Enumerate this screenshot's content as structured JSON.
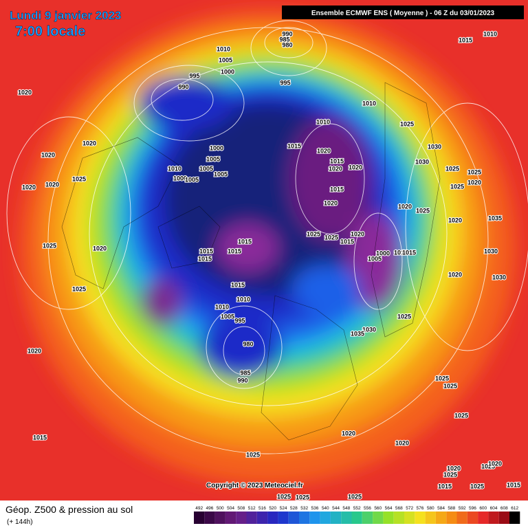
{
  "header": {
    "date": "Lundi 9 janvier 2023",
    "time": "7:00 locale",
    "model": "Ensemble ECMWF ENS  ( Moyenne )  -  06 Z du 03/01/2023"
  },
  "footer": {
    "title": "Géop. Z500 & pression au sol",
    "lead": "(+ 144h)",
    "copyright": "Copyright © 2023 Meteociel.fr"
  },
  "legend": {
    "ticks": [
      492,
      496,
      500,
      504,
      508,
      512,
      516,
      520,
      524,
      528,
      532,
      536,
      540,
      544,
      548,
      552,
      556,
      560,
      564,
      568,
      572,
      576,
      580,
      584,
      588,
      592,
      596,
      600,
      604,
      608,
      612
    ]
  },
  "pressure_labels": [
    "990",
    "985",
    "980",
    "1010",
    "1005",
    "1000",
    "995",
    "990",
    "995",
    "1010",
    "1010",
    "1015",
    "1020",
    "1015",
    "1020",
    "1020",
    "1015",
    "1020",
    "1025",
    "1025",
    "1015",
    "1020",
    "1000",
    "1005",
    "1010",
    "1015",
    "1025",
    "1030",
    "1035",
    "1015",
    "1015",
    "1015",
    "1015",
    "1015",
    "1010",
    "1010",
    "1005",
    "995",
    "980",
    "985",
    "990",
    "1000",
    "1005",
    "1005",
    "1005",
    "1010",
    "1000",
    "1005",
    "1020",
    "1020",
    "1020",
    "1025",
    "1020",
    "1020",
    "1025",
    "1020",
    "1025",
    "1020",
    "1015",
    "1025",
    "1020",
    "1020",
    "1025",
    "1025",
    "1025",
    "1025",
    "1030",
    "1030",
    "1025",
    "1025",
    "1020",
    "1025",
    "1010",
    "1015",
    "1020",
    "1025",
    "1020",
    "1030",
    "1030",
    "1020",
    "1035",
    "1025",
    "1025",
    "1025",
    "1025",
    "1020",
    "1020",
    "1015",
    "1015",
    "1025",
    "1025"
  ]
}
